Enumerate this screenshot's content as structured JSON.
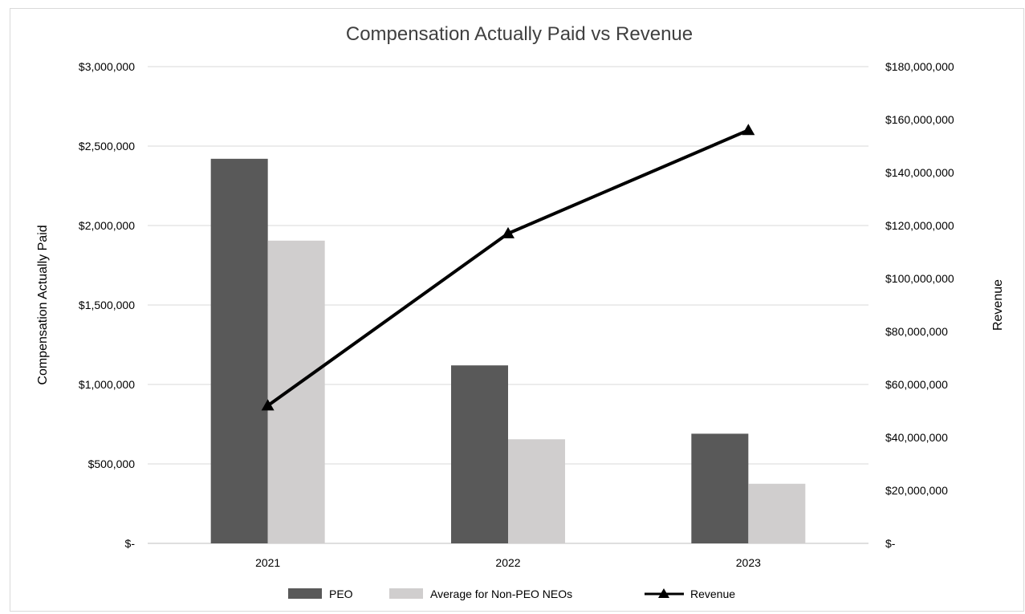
{
  "chart_data": {
    "type": "bar",
    "title": "Compensation Actually Paid vs Revenue",
    "categories": [
      "2021",
      "2022",
      "2023"
    ],
    "ylabel": "Compensation Actually Paid",
    "y2label": "Revenue",
    "ylim": [
      0,
      3000000
    ],
    "y2lim": [
      0,
      180000000
    ],
    "yticks": [
      {
        "value": 0,
        "label": "$-"
      },
      {
        "value": 500000,
        "label": "$500,000"
      },
      {
        "value": 1000000,
        "label": "$1,000,000"
      },
      {
        "value": 1500000,
        "label": "$1,500,000"
      },
      {
        "value": 2000000,
        "label": "$2,000,000"
      },
      {
        "value": 2500000,
        "label": "$2,500,000"
      },
      {
        "value": 3000000,
        "label": "$3,000,000"
      }
    ],
    "y2ticks": [
      {
        "value": 0,
        "label": "$-"
      },
      {
        "value": 20000000,
        "label": "$20,000,000"
      },
      {
        "value": 40000000,
        "label": "$40,000,000"
      },
      {
        "value": 60000000,
        "label": "$60,000,000"
      },
      {
        "value": 80000000,
        "label": "$80,000,000"
      },
      {
        "value": 100000000,
        "label": "$100,000,000"
      },
      {
        "value": 120000000,
        "label": "$120,000,000"
      },
      {
        "value": 140000000,
        "label": "$140,000,000"
      },
      {
        "value": 160000000,
        "label": "$160,000,000"
      },
      {
        "value": 180000000,
        "label": "$180,000,000"
      }
    ],
    "series": [
      {
        "name": "PEO",
        "type": "bar",
        "axis": "left",
        "color": "#595959",
        "values": [
          2420000,
          1120000,
          690000
        ]
      },
      {
        "name": "Average for Non-PEO NEOs",
        "type": "bar",
        "axis": "right_none",
        "color": "#d0cece",
        "values": [
          1905000,
          655000,
          375000
        ]
      },
      {
        "name": "Revenue",
        "type": "line",
        "axis": "right",
        "color": "#000000",
        "marker": "triangle",
        "values": [
          52000000,
          117000000,
          156000000
        ]
      }
    ],
    "grid": true,
    "legend": "bottom"
  }
}
